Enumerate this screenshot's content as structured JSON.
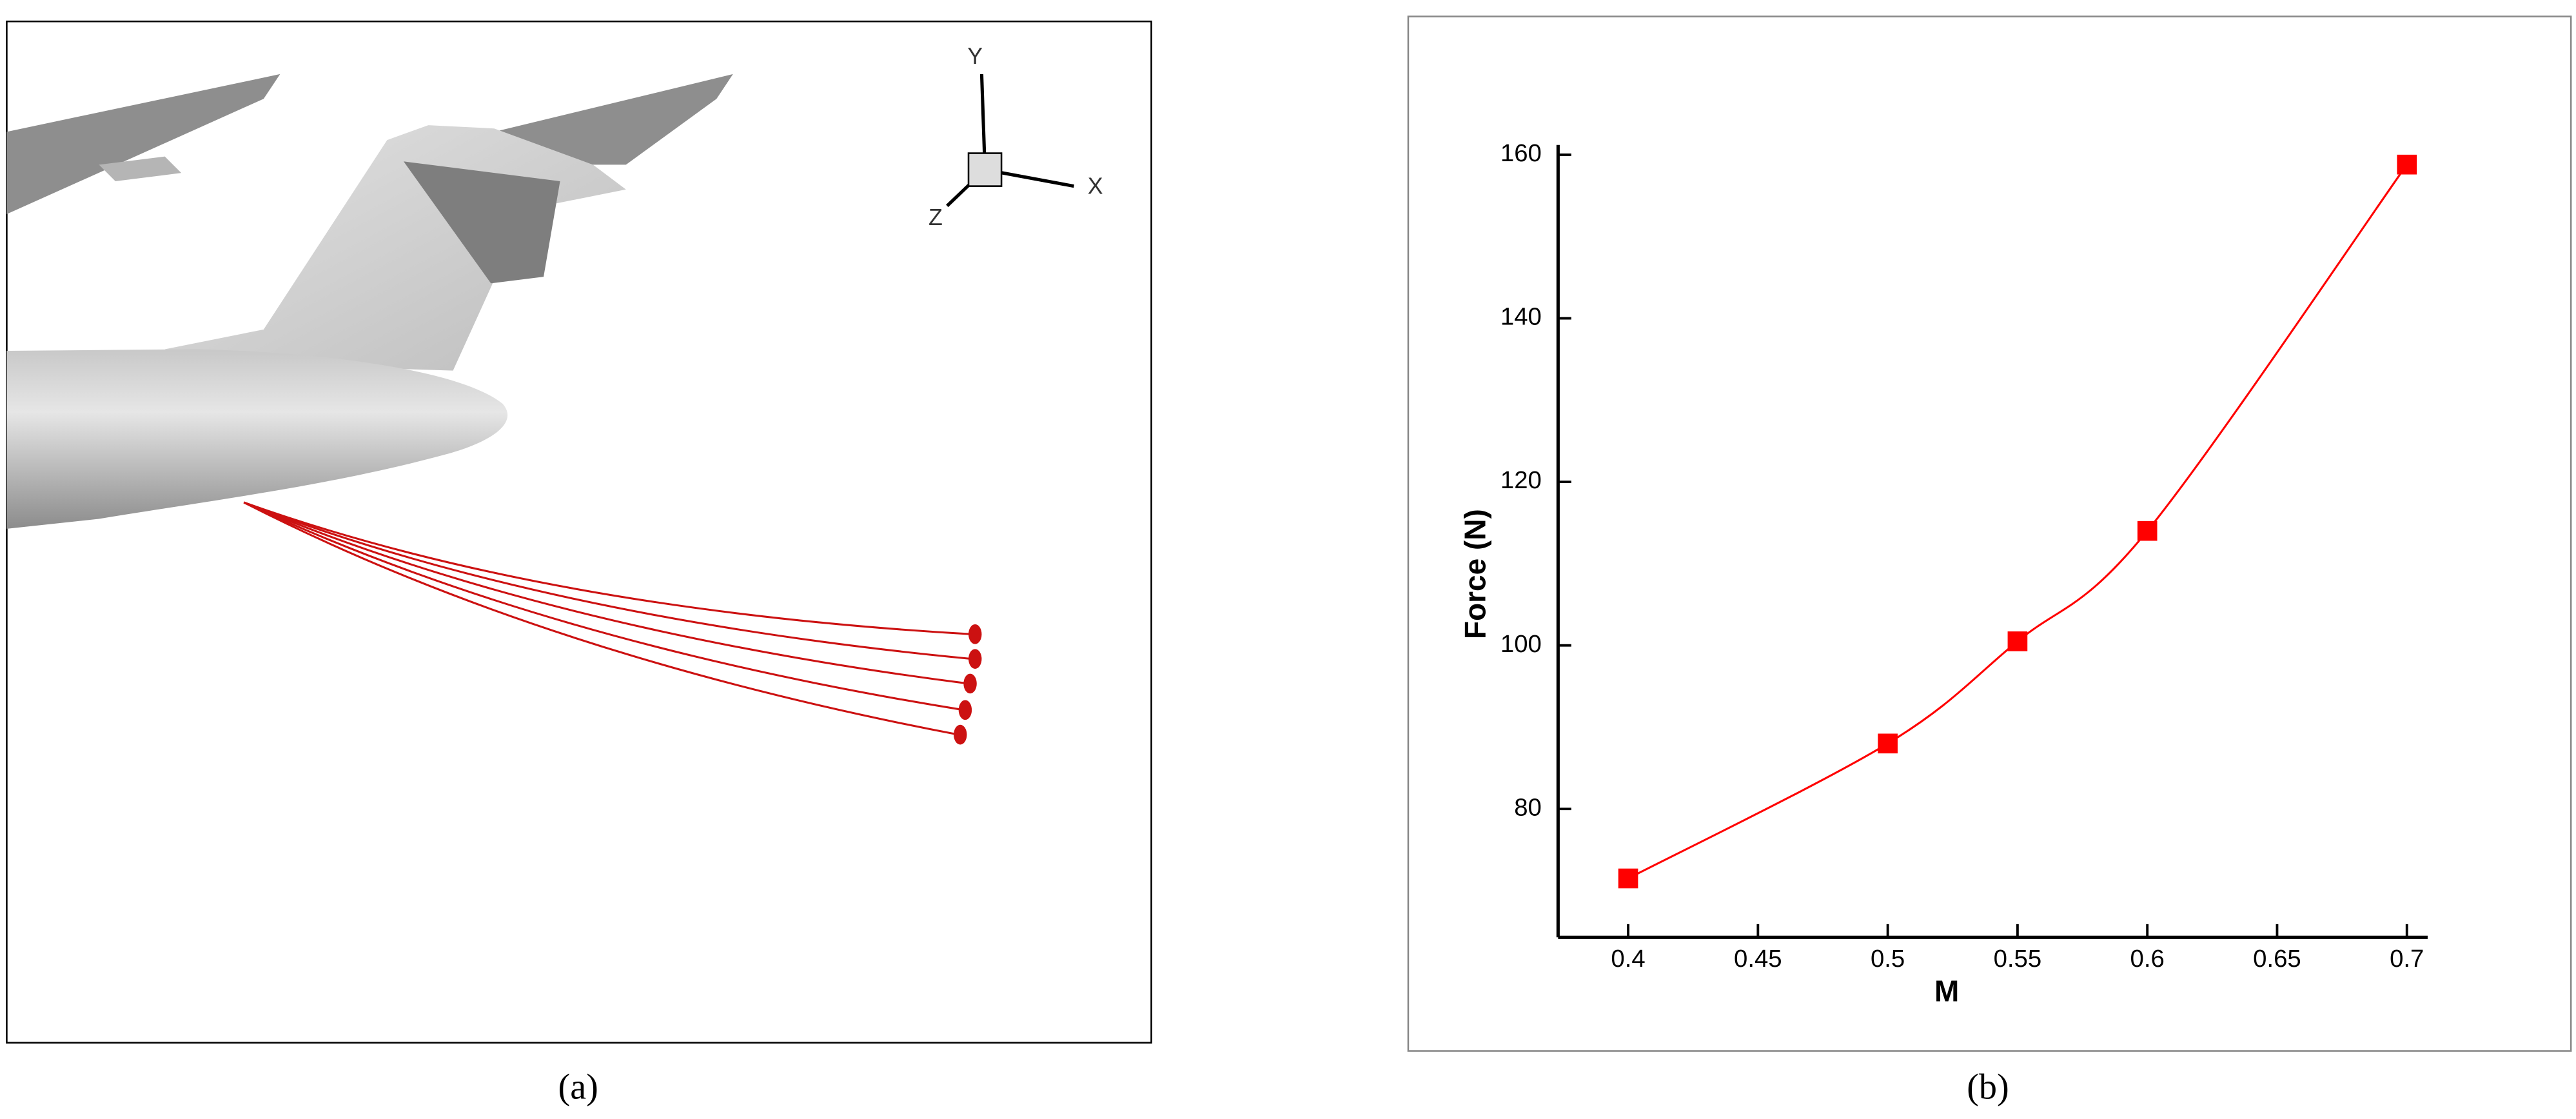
{
  "captions": [
    "(a)",
    "(b)"
  ],
  "triad": {
    "y": "Y",
    "x": "X",
    "z": "Z"
  },
  "chart_data": {
    "type": "line",
    "xlabel": "M",
    "ylabel": "Force (N)",
    "x": [
      0.4,
      0.5,
      0.55,
      0.6,
      0.7
    ],
    "series": [
      {
        "color": "#ff0000",
        "values": [
          71.5,
          88,
          100.5,
          114,
          158.8
        ]
      }
    ],
    "xlim": [
      0.373,
      0.708
    ],
    "xticks": [
      0.4,
      0.45,
      0.5,
      0.55,
      0.6,
      0.65,
      0.7
    ],
    "ylim": [
      64.3,
      161.2
    ],
    "yticks": [
      80,
      100,
      120,
      140,
      160
    ],
    "grid": false
  }
}
